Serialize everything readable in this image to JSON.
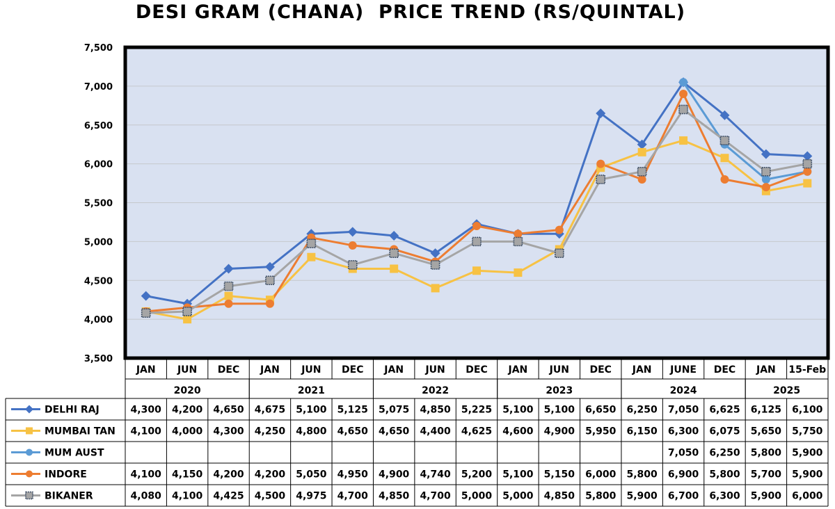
{
  "chart_data": {
    "type": "line",
    "title": "DESI GRAM (CHANA)  PRICE TREND (RS/QUINTAL)",
    "ylim": [
      3500,
      7500
    ],
    "yticks": [
      "3,500",
      "4,000",
      "4,500",
      "5,000",
      "5,500",
      "6,000",
      "6,500",
      "7,000",
      "7,500"
    ],
    "categories": [
      "JAN",
      "JUN",
      "DEC",
      "JAN",
      "JUN",
      "DEC",
      "JAN",
      "JUN",
      "DEC",
      "JAN",
      "JUN",
      "DEC",
      "JAN",
      "JUNE",
      "DEC",
      "JAN",
      "15-Feb"
    ],
    "years": [
      {
        "label": "2020",
        "start": 0,
        "end": 2
      },
      {
        "label": "2021",
        "start": 3,
        "end": 5
      },
      {
        "label": "2022",
        "start": 6,
        "end": 8
      },
      {
        "label": "2023",
        "start": 9,
        "end": 11
      },
      {
        "label": "2024",
        "start": 12,
        "end": 14
      },
      {
        "label": "2025",
        "start": 15,
        "end": 16
      }
    ],
    "grid": true,
    "plot_background": "#d9e1f1",
    "series": [
      {
        "name": "DELHI RAJ",
        "color": "#4472c4",
        "marker": "diamond",
        "values": [
          4300,
          4200,
          4650,
          4675,
          5100,
          5125,
          5075,
          4850,
          5225,
          5100,
          5100,
          6650,
          6250,
          7050,
          6625,
          6125,
          6100
        ],
        "labels": [
          "4,300",
          "4,200",
          "4,650",
          "4,675",
          "5,100",
          "5,125",
          "5,075",
          "4,850",
          "5,225",
          "5,100",
          "5,100",
          "6,650",
          "6,250",
          "7,050",
          "6,625",
          "6,125",
          "6,100"
        ]
      },
      {
        "name": "MUMBAI TAN",
        "color": "#f7c244",
        "marker": "square",
        "values": [
          4100,
          4000,
          4300,
          4250,
          4800,
          4650,
          4650,
          4400,
          4625,
          4600,
          4900,
          5950,
          6150,
          6300,
          6075,
          5650,
          5750
        ],
        "labels": [
          "4,100",
          "4,000",
          "4,300",
          "4,250",
          "4,800",
          "4,650",
          "4,650",
          "4,400",
          "4,625",
          "4,600",
          "4,900",
          "5,950",
          "6,150",
          "6,300",
          "6,075",
          "5,650",
          "5,750"
        ]
      },
      {
        "name": "MUM AUST",
        "color": "#5b9bd5",
        "marker": "circle",
        "values": [
          null,
          null,
          null,
          null,
          null,
          null,
          null,
          null,
          null,
          null,
          null,
          null,
          null,
          7050,
          6250,
          5800,
          5900
        ],
        "labels": [
          "",
          "",
          "",
          "",
          "",
          "",
          "",
          "",
          "",
          "",
          "",
          "",
          "",
          "7,050",
          "6,250",
          "5,800",
          "5,900"
        ]
      },
      {
        "name": "INDORE",
        "color": "#ed7d31",
        "marker": "circle",
        "values": [
          4100,
          4150,
          4200,
          4200,
          5050,
          4950,
          4900,
          4740,
          5200,
          5100,
          5150,
          6000,
          5800,
          6900,
          5800,
          5700,
          5900
        ],
        "labels": [
          "4,100",
          "4,150",
          "4,200",
          "4,200",
          "5,050",
          "4,950",
          "4,900",
          "4,740",
          "5,200",
          "5,100",
          "5,150",
          "6,000",
          "5,800",
          "6,900",
          "5,800",
          "5,700",
          "5,900"
        ]
      },
      {
        "name": "BIKANER",
        "color": "#a5a5a5",
        "marker": "square-outlined",
        "values": [
          4080,
          4100,
          4425,
          4500,
          4975,
          4700,
          4850,
          4700,
          5000,
          5000,
          4850,
          5800,
          5900,
          6700,
          6300,
          5900,
          6000
        ],
        "labels": [
          "4,080",
          "4,100",
          "4,425",
          "4,500",
          "4,975",
          "4,700",
          "4,850",
          "4,700",
          "5,000",
          "5,000",
          "4,850",
          "5,800",
          "5,900",
          "6,700",
          "6,300",
          "5,900",
          "6,000"
        ]
      }
    ]
  }
}
